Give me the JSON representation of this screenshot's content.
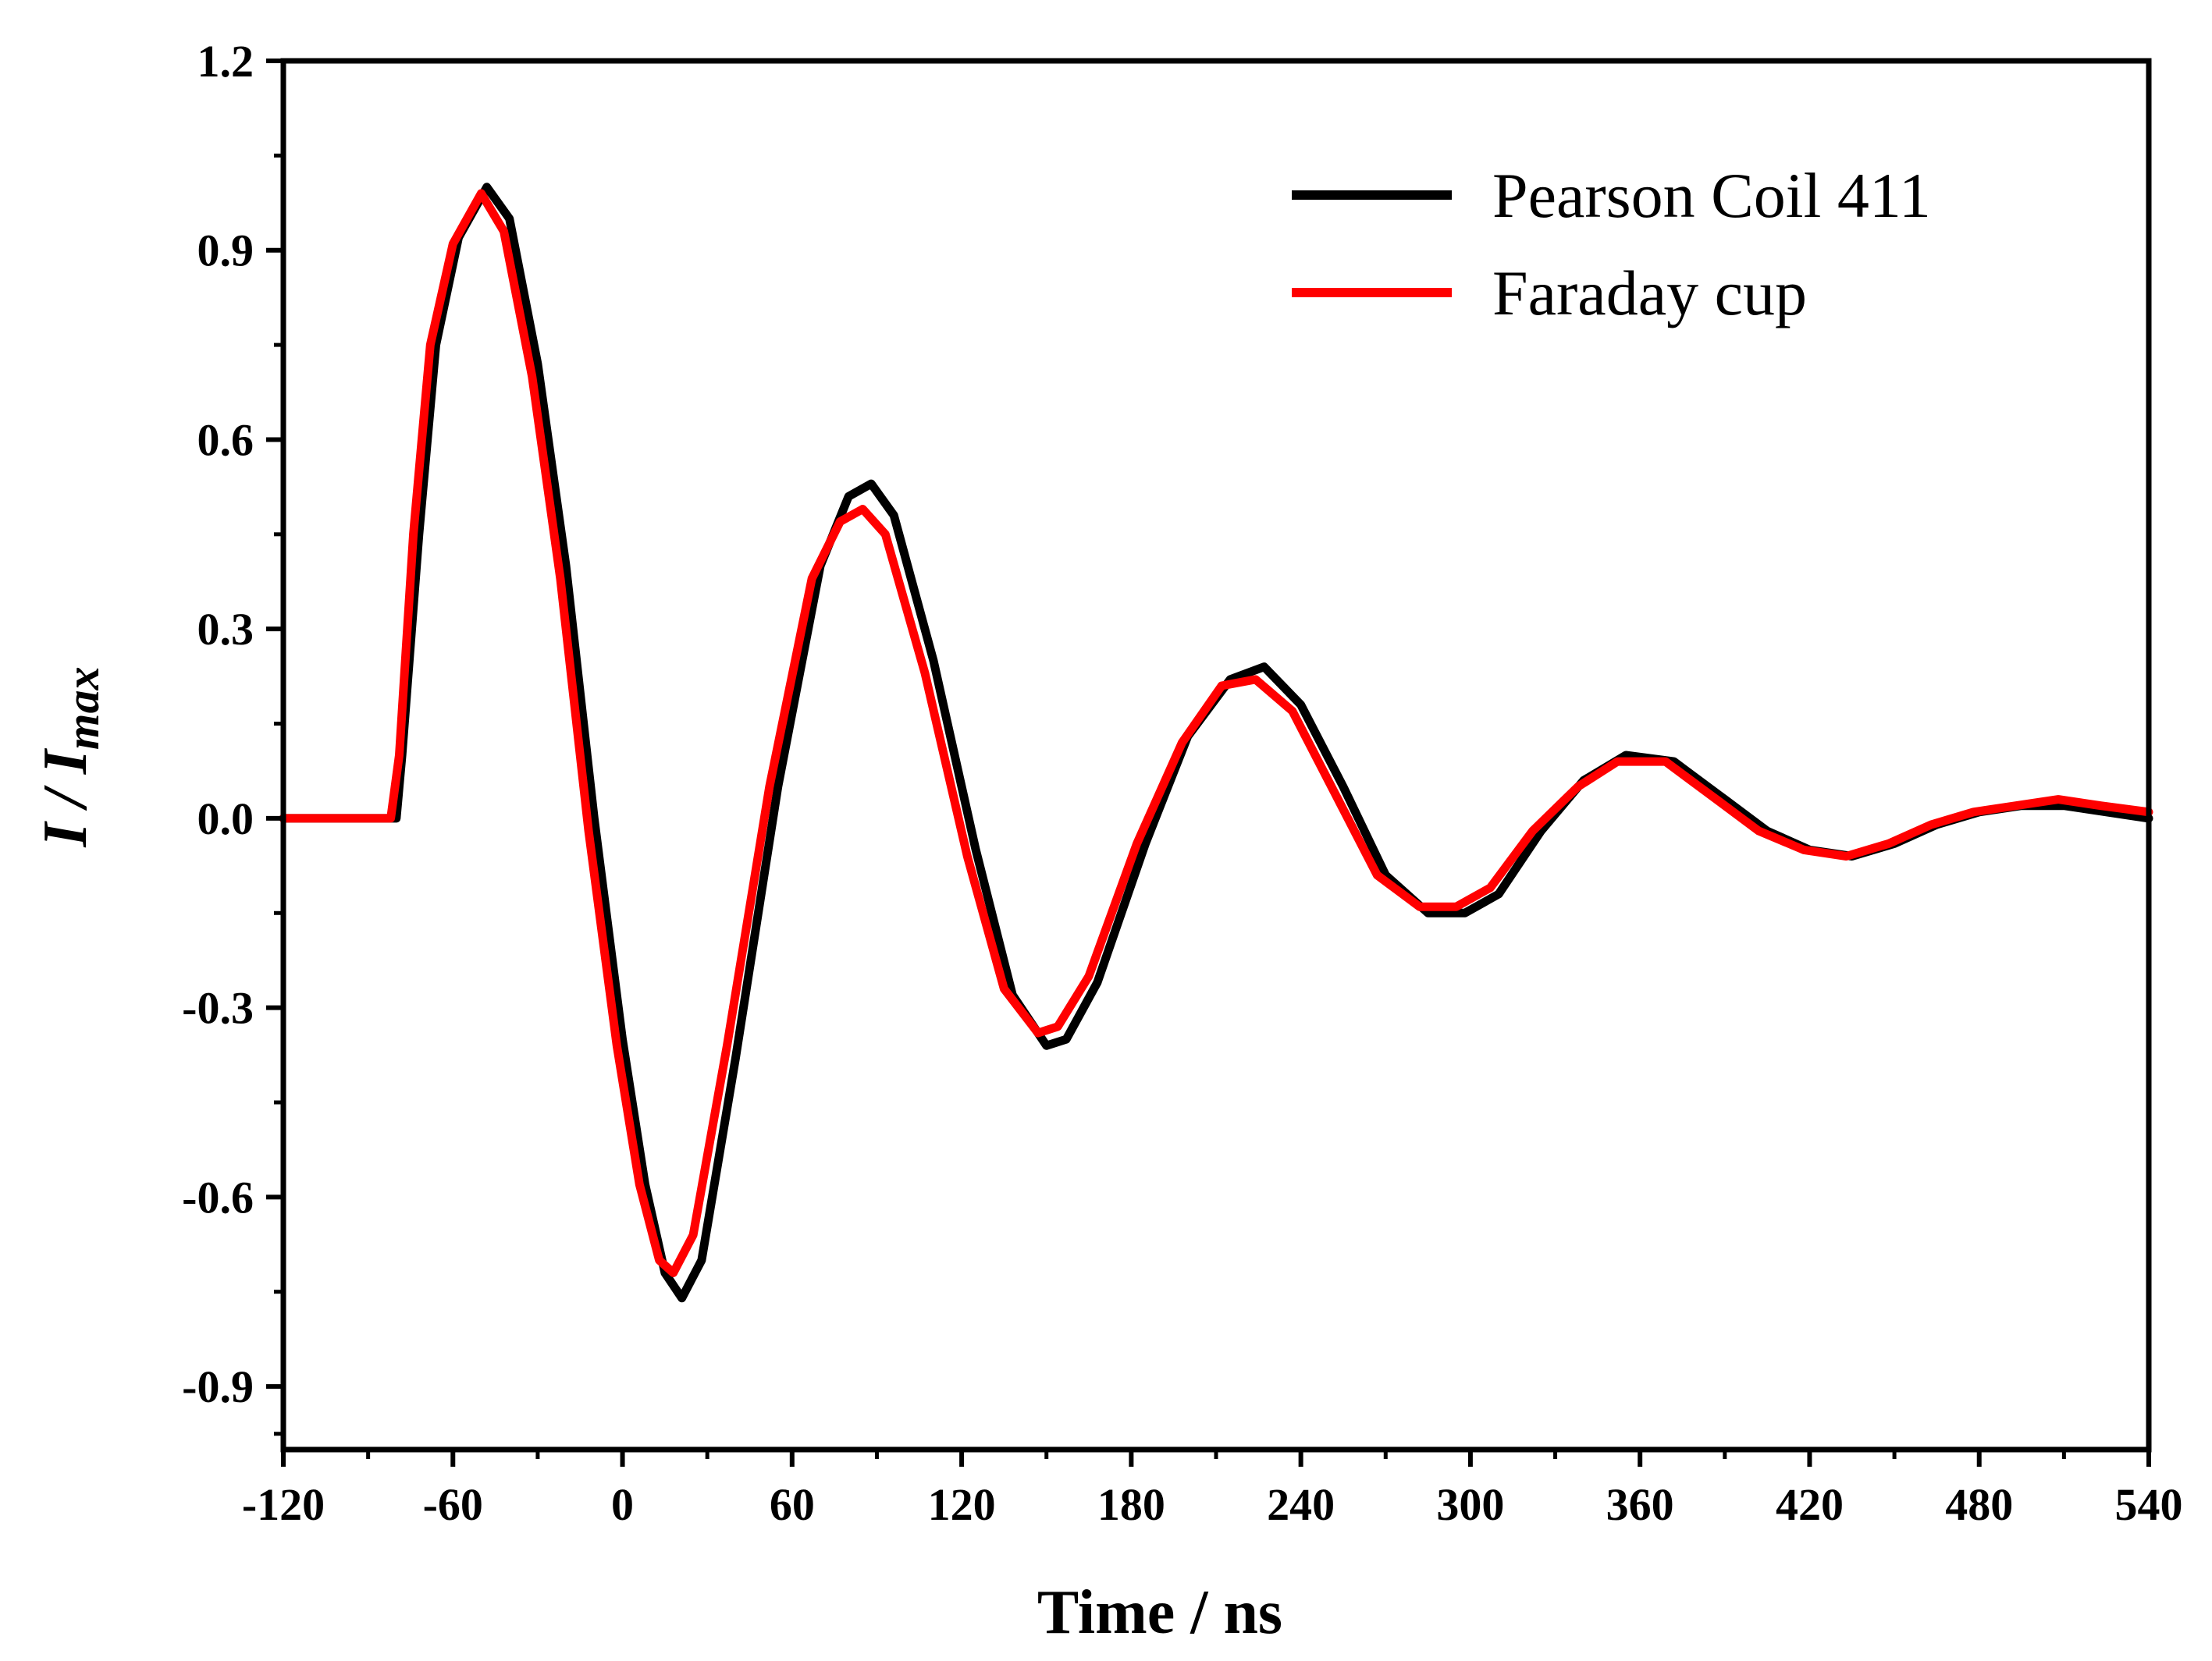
{
  "chart_data": {
    "type": "line",
    "title": "",
    "xlabel": "Time / ns",
    "ylabel": {
      "main": "I / I",
      "sub": "max"
    },
    "xlim": [
      -120,
      540
    ],
    "ylim": [
      -1.0,
      1.2
    ],
    "xticks": [
      -120,
      -60,
      0,
      60,
      120,
      180,
      240,
      300,
      360,
      420,
      480,
      540
    ],
    "xtick_labels": [
      "-120",
      "-60",
      "0",
      "60",
      "120",
      "180",
      "240",
      "300",
      "360",
      "420",
      "480",
      "540"
    ],
    "yticks": [
      -0.9,
      -0.6,
      -0.3,
      0.0,
      0.3,
      0.6,
      0.9,
      1.2
    ],
    "ytick_labels": [
      "-0.9",
      "-0.6",
      "-0.3",
      "0.0",
      "0.3",
      "0.6",
      "0.9",
      "1.2"
    ],
    "grid": false,
    "legend_position": "top-right",
    "series": [
      {
        "name": "Pearson Coil 411",
        "color": "#000000",
        "points": [
          [
            -120,
            0
          ],
          [
            -80,
            0
          ],
          [
            -78,
            0.1
          ],
          [
            -72,
            0.45
          ],
          [
            -66,
            0.75
          ],
          [
            -58,
            0.92
          ],
          [
            -48,
            1.0
          ],
          [
            -40,
            0.95
          ],
          [
            -30,
            0.72
          ],
          [
            -20,
            0.4
          ],
          [
            -10,
            0.0
          ],
          [
            0,
            -0.35
          ],
          [
            8,
            -0.58
          ],
          [
            15,
            -0.72
          ],
          [
            21,
            -0.76
          ],
          [
            28,
            -0.7
          ],
          [
            40,
            -0.38
          ],
          [
            55,
            0.05
          ],
          [
            70,
            0.4
          ],
          [
            80,
            0.51
          ],
          [
            88,
            0.53
          ],
          [
            96,
            0.48
          ],
          [
            110,
            0.25
          ],
          [
            125,
            -0.05
          ],
          [
            138,
            -0.28
          ],
          [
            150,
            -0.36
          ],
          [
            157,
            -0.35
          ],
          [
            168,
            -0.26
          ],
          [
            185,
            -0.04
          ],
          [
            200,
            0.13
          ],
          [
            215,
            0.22
          ],
          [
            227,
            0.24
          ],
          [
            240,
            0.18
          ],
          [
            255,
            0.05
          ],
          [
            270,
            -0.09
          ],
          [
            285,
            -0.15
          ],
          [
            298,
            -0.15
          ],
          [
            310,
            -0.12
          ],
          [
            325,
            -0.02
          ],
          [
            340,
            0.06
          ],
          [
            355,
            0.1
          ],
          [
            372,
            0.09
          ],
          [
            390,
            0.03
          ],
          [
            405,
            -0.02
          ],
          [
            420,
            -0.05
          ],
          [
            435,
            -0.06
          ],
          [
            450,
            -0.04
          ],
          [
            465,
            -0.01
          ],
          [
            480,
            0.01
          ],
          [
            495,
            0.02
          ],
          [
            510,
            0.02
          ],
          [
            525,
            0.01
          ],
          [
            540,
            0
          ]
        ]
      },
      {
        "name": "Faraday cup",
        "color": "#ff0000",
        "points": [
          [
            -120,
            0
          ],
          [
            -82,
            0
          ],
          [
            -79,
            0.1
          ],
          [
            -74,
            0.45
          ],
          [
            -68,
            0.75
          ],
          [
            -60,
            0.91
          ],
          [
            -50,
            0.99
          ],
          [
            -42,
            0.93
          ],
          [
            -32,
            0.7
          ],
          [
            -22,
            0.38
          ],
          [
            -12,
            -0.02
          ],
          [
            -2,
            -0.36
          ],
          [
            6,
            -0.58
          ],
          [
            13,
            -0.7
          ],
          [
            18,
            -0.72
          ],
          [
            25,
            -0.66
          ],
          [
            37,
            -0.36
          ],
          [
            52,
            0.05
          ],
          [
            67,
            0.38
          ],
          [
            77,
            0.47
          ],
          [
            85,
            0.49
          ],
          [
            93,
            0.45
          ],
          [
            107,
            0.23
          ],
          [
            122,
            -0.06
          ],
          [
            135,
            -0.27
          ],
          [
            147,
            -0.34
          ],
          [
            154,
            -0.33
          ],
          [
            165,
            -0.25
          ],
          [
            182,
            -0.04
          ],
          [
            198,
            0.12
          ],
          [
            212,
            0.21
          ],
          [
            224,
            0.22
          ],
          [
            237,
            0.17
          ],
          [
            252,
            0.04
          ],
          [
            267,
            -0.09
          ],
          [
            282,
            -0.14
          ],
          [
            295,
            -0.14
          ],
          [
            307,
            -0.11
          ],
          [
            322,
            -0.02
          ],
          [
            338,
            0.05
          ],
          [
            352,
            0.09
          ],
          [
            369,
            0.09
          ],
          [
            387,
            0.03
          ],
          [
            402,
            -0.02
          ],
          [
            418,
            -0.05
          ],
          [
            433,
            -0.06
          ],
          [
            448,
            -0.04
          ],
          [
            463,
            -0.01
          ],
          [
            478,
            0.01
          ],
          [
            493,
            0.02
          ],
          [
            508,
            0.03
          ],
          [
            523,
            0.02
          ],
          [
            540,
            0.01
          ]
        ]
      }
    ]
  }
}
